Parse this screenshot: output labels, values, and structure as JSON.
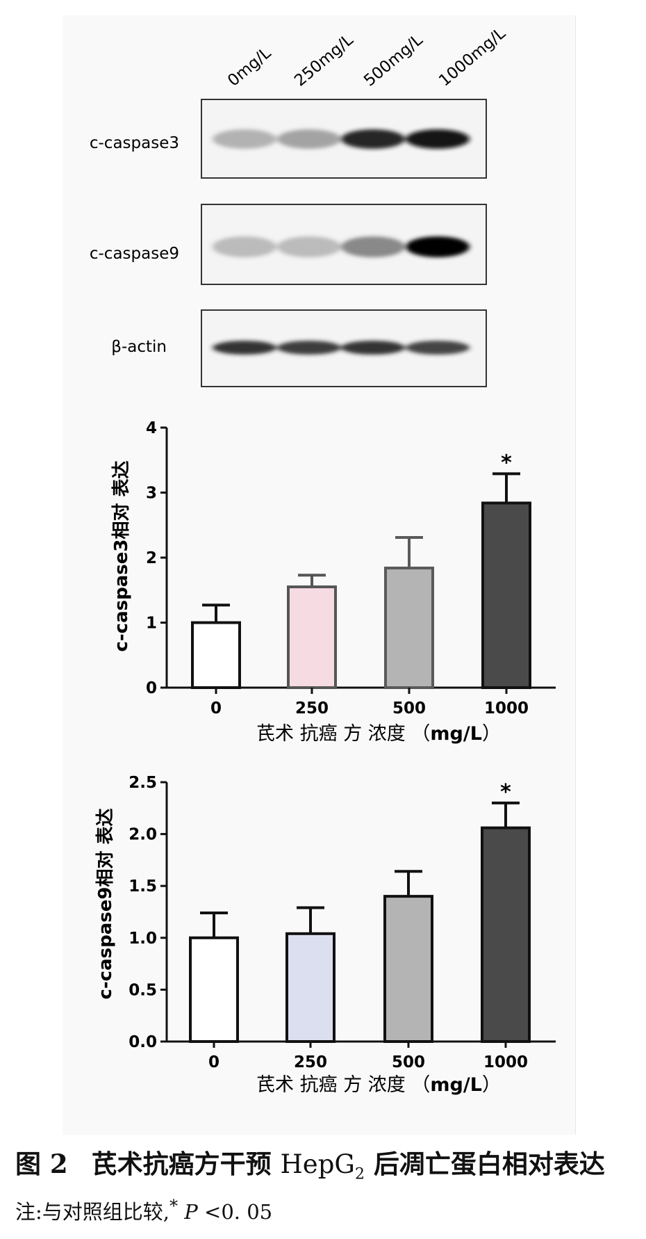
{
  "blot": {
    "lanes": [
      "0mg/L",
      "250mg/L",
      "500mg/L",
      "1000mg/L"
    ],
    "rows": [
      {
        "label": "c-caspase3",
        "intensities": [
          0.35,
          0.42,
          0.9,
          0.95
        ]
      },
      {
        "label": "c-caspase9",
        "intensities": [
          0.3,
          0.3,
          0.55,
          1.0
        ]
      },
      {
        "label": "β-actin",
        "intensities": [
          0.85,
          0.82,
          0.85,
          0.8
        ]
      }
    ]
  },
  "chart_data": [
    {
      "type": "bar",
      "categories": [
        "0",
        "250",
        "500",
        "1000"
      ],
      "values": [
        1.0,
        1.55,
        1.84,
        2.84
      ],
      "errors": [
        0.27,
        0.18,
        0.47,
        0.45
      ],
      "significance": [
        "",
        "",
        "",
        "*"
      ],
      "ylabel": "c-caspase3相对 表达",
      "xlabel_cn": "芪术 抗癌 方 浓度 （",
      "xlabel_unit": "mg/L",
      "xlabel_close": "）",
      "ylim": [
        0,
        4
      ],
      "yticks": [
        "0",
        "1",
        "2",
        "3",
        "4"
      ],
      "bar_colors": [
        "#ffffff",
        "#f6dbe3",
        "#b4b4b4",
        "#4a4a4a"
      ],
      "edge_colors": [
        "#111111",
        "#555555",
        "#5a5a5a",
        "#111111"
      ]
    },
    {
      "type": "bar",
      "categories": [
        "0",
        "250",
        "500",
        "1000"
      ],
      "values": [
        1.0,
        1.04,
        1.4,
        2.06
      ],
      "errors": [
        0.24,
        0.25,
        0.24,
        0.24
      ],
      "significance": [
        "",
        "",
        "",
        "*"
      ],
      "ylabel": "c-caspase9相对 表达",
      "xlabel_cn": "芪术 抗癌 方 浓度 （",
      "xlabel_unit": "mg/L",
      "xlabel_close": "）",
      "ylim": [
        0,
        2.5
      ],
      "yticks": [
        "0.0",
        "0.5",
        "1.0",
        "1.5",
        "2.0",
        "2.5"
      ],
      "bar_colors": [
        "#ffffff",
        "#dcdff0",
        "#b4b4b4",
        "#4a4a4a"
      ],
      "edge_colors": [
        "#111111",
        "#111111",
        "#111111",
        "#111111"
      ]
    }
  ],
  "caption": {
    "fig_num": "图 2",
    "title_a": "芪术抗癌方干预",
    "hep": "HepG",
    "sub": "2",
    "title_b": "后凋亡蛋白相对表达"
  },
  "note": {
    "prefix": "注:与对照组比较,",
    "star": "*",
    "p": "P",
    "rest": "<0. 05"
  }
}
